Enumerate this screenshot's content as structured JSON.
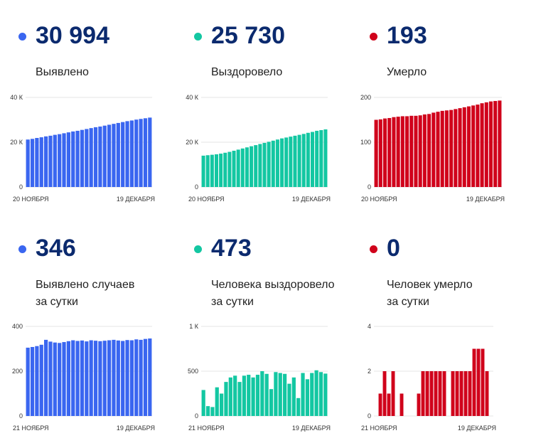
{
  "panels": [
    {
      "value": "30 994",
      "label_lines": [
        "Выявлено"
      ],
      "color": "#3a66f0",
      "chart_data": {
        "type": "bar",
        "x_start_label": "20 НОЯБРЯ",
        "x_end_label": "19 ДЕКАБРЯ",
        "yticks": [
          0,
          20000,
          40000
        ],
        "ytick_labels": [
          "0",
          "20 К",
          "40 К"
        ],
        "ylim": [
          0,
          40000
        ],
        "values": [
          21200,
          21500,
          21900,
          22200,
          22600,
          22900,
          23300,
          23600,
          24000,
          24400,
          24800,
          25100,
          25500,
          25900,
          26300,
          26700,
          27000,
          27400,
          27800,
          28200,
          28600,
          29000,
          29400,
          29700,
          30100,
          30400,
          30700,
          30994
        ]
      }
    },
    {
      "value": "25 730",
      "label_lines": [
        "Выздоровело"
      ],
      "color": "#13c7a2",
      "chart_data": {
        "type": "bar",
        "x_start_label": "20 НОЯБРЯ",
        "x_end_label": "19 ДЕКАБРЯ",
        "yticks": [
          0,
          20000,
          40000
        ],
        "ytick_labels": [
          "0",
          "20 К",
          "40 К"
        ],
        "ylim": [
          0,
          40000
        ],
        "values": [
          14000,
          14200,
          14400,
          14600,
          14900,
          15300,
          15700,
          16200,
          16700,
          17200,
          17700,
          18200,
          18700,
          19200,
          19700,
          20200,
          20700,
          21200,
          21700,
          22100,
          22500,
          22900,
          23300,
          23700,
          24200,
          24600,
          25100,
          25400,
          25730
        ]
      }
    },
    {
      "value": "193",
      "label_lines": [
        "Умерло"
      ],
      "color": "#d0021b",
      "chart_data": {
        "type": "bar",
        "x_start_label": "20 НОЯБРЯ",
        "x_end_label": "19 ДЕКАБРЯ",
        "yticks": [
          0,
          100,
          200
        ],
        "ytick_labels": [
          "0",
          "100",
          "200"
        ],
        "ylim": [
          0,
          200
        ],
        "values": [
          150,
          151,
          153,
          154,
          156,
          157,
          158,
          158,
          159,
          159,
          160,
          162,
          163,
          166,
          168,
          170,
          171,
          172,
          174,
          176,
          178,
          180,
          182,
          184,
          187,
          189,
          191,
          192,
          193
        ]
      }
    },
    {
      "value": "346",
      "label_lines": [
        "Выявлено случаев",
        "за сутки"
      ],
      "color": "#3a66f0",
      "chart_data": {
        "type": "bar",
        "x_start_label": "21 НОЯБРЯ",
        "x_end_label": "19 ДЕКАБРЯ",
        "yticks": [
          0,
          200,
          400
        ],
        "ytick_labels": [
          "0",
          "200",
          "400"
        ],
        "ylim": [
          0,
          400
        ],
        "values": [
          305,
          308,
          312,
          318,
          340,
          332,
          328,
          326,
          330,
          334,
          338,
          335,
          337,
          333,
          338,
          336,
          334,
          336,
          338,
          340,
          337,
          335,
          339,
          338,
          342,
          340,
          344,
          346
        ]
      }
    },
    {
      "value": "473",
      "label_lines": [
        "Человека выздоровело",
        "за сутки"
      ],
      "color": "#13c7a2",
      "chart_data": {
        "type": "bar",
        "x_start_label": "21 НОЯБРЯ",
        "x_end_label": "19 ДЕКАБРЯ",
        "yticks": [
          0,
          500,
          1000
        ],
        "ytick_labels": [
          "0",
          "500",
          "1 К"
        ],
        "ylim": [
          0,
          1000
        ],
        "values": [
          290,
          110,
          100,
          320,
          250,
          380,
          430,
          450,
          380,
          450,
          460,
          430,
          460,
          500,
          470,
          300,
          490,
          480,
          470,
          360,
          430,
          200,
          480,
          410,
          480,
          510,
          490,
          473
        ]
      }
    },
    {
      "value": "0",
      "label_lines": [
        "Человек умерло",
        "за сутки"
      ],
      "color": "#d0021b",
      "chart_data": {
        "type": "bar",
        "x_start_label": "21 НОЯБРЯ",
        "x_end_label": "19 ДЕКАБРЯ",
        "yticks": [
          0,
          2,
          4
        ],
        "ytick_labels": [
          "0",
          "2",
          "4"
        ],
        "ylim": [
          0,
          4
        ],
        "values": [
          0,
          1,
          2,
          1,
          2,
          0,
          1,
          0,
          0,
          0,
          1,
          2,
          2,
          2,
          2,
          2,
          2,
          0,
          2,
          2,
          2,
          2,
          2,
          3,
          3,
          3,
          2,
          0
        ]
      }
    }
  ]
}
